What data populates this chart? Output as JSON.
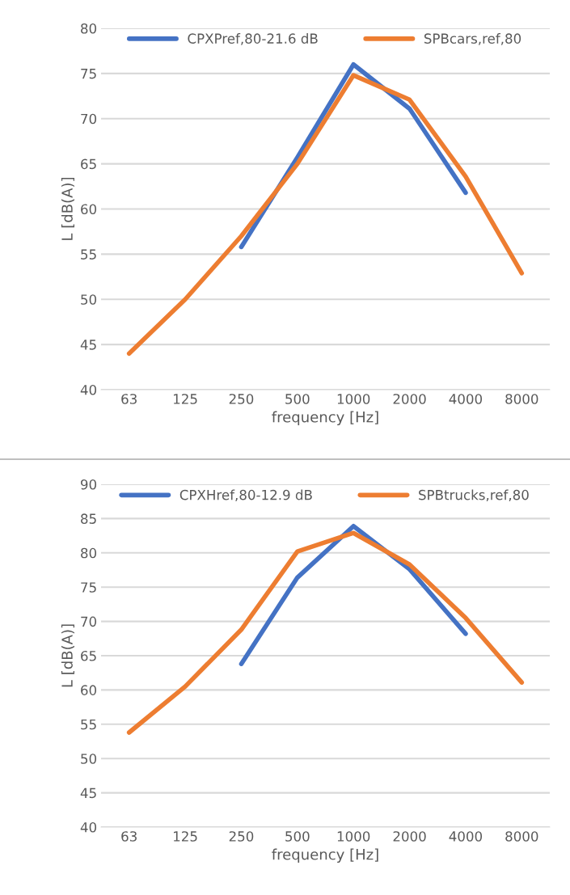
{
  "chart_data": [
    {
      "type": "line",
      "xlabel": "frequency [Hz]",
      "ylabel": "L [dB(A)]",
      "categories": [
        "63",
        "125",
        "250",
        "500",
        "1000",
        "2000",
        "4000",
        "8000"
      ],
      "ylim": [
        40,
        80
      ],
      "yticks": [
        40,
        45,
        50,
        55,
        60,
        65,
        70,
        75,
        80
      ],
      "grid": "y",
      "legend": "top",
      "marker": "none",
      "line_style": "solid",
      "series": [
        {
          "name": "CPXPref,80-21.6 dB",
          "color": "#4472c4",
          "values": [
            null,
            null,
            55.8,
            65.7,
            76.0,
            71.1,
            61.8,
            null
          ]
        },
        {
          "name": "SPBcars,ref,80",
          "color": "#ed7d31",
          "values": [
            44.0,
            50.0,
            57.0,
            65.0,
            74.8,
            72.1,
            63.6,
            52.9
          ]
        }
      ]
    },
    {
      "type": "line",
      "xlabel": "frequency [Hz]",
      "ylabel": "L [dB(A)]",
      "categories": [
        "63",
        "125",
        "250",
        "500",
        "1000",
        "2000",
        "4000",
        "8000"
      ],
      "ylim": [
        40,
        90
      ],
      "yticks": [
        40,
        45,
        50,
        55,
        60,
        65,
        70,
        75,
        80,
        85,
        90
      ],
      "grid": "y",
      "legend": "top",
      "marker": "none",
      "line_style": "solid",
      "series": [
        {
          "name": "CPXHref,80-12.9 dB",
          "color": "#4472c4",
          "values": [
            null,
            null,
            63.8,
            76.4,
            83.9,
            77.6,
            68.2,
            null
          ]
        },
        {
          "name": "SPBtrucks,ref,80",
          "color": "#ed7d31",
          "values": [
            53.8,
            60.5,
            68.8,
            80.2,
            82.9,
            78.3,
            70.5,
            61.1
          ]
        }
      ]
    }
  ]
}
